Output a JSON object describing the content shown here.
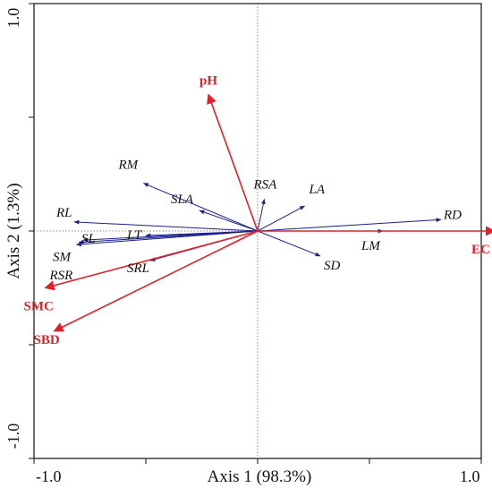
{
  "chart_data": {
    "type": "biplot",
    "xlabel": "Axis 1 (98.3%)",
    "ylabel": "Axis 2 (1.3%)",
    "xlim": [
      -1.0,
      1.0
    ],
    "ylim": [
      -1.0,
      1.0
    ],
    "x_tick_labels": [
      "-1.0",
      "1.0"
    ],
    "y_tick_labels": [
      "1.0",
      "-1.0"
    ],
    "colors": {
      "response": "#1c1f8c",
      "environment": "#e0202a"
    },
    "response_vectors": [
      {
        "label": "RL",
        "x": -0.82,
        "y": 0.04
      },
      {
        "label": "SL",
        "x": -0.78,
        "y": -0.04
      },
      {
        "label": "SM",
        "x": -0.8,
        "y": -0.05
      },
      {
        "label": "RSR",
        "x": -0.81,
        "y": -0.06
      },
      {
        "label": "LT",
        "x": -0.5,
        "y": -0.02
      },
      {
        "label": "RM",
        "x": -0.51,
        "y": 0.21
      },
      {
        "label": "SLA",
        "x": -0.26,
        "y": 0.09
      },
      {
        "label": "SRL",
        "x": -0.48,
        "y": -0.13
      },
      {
        "label": "RSA",
        "x": 0.03,
        "y": 0.14
      },
      {
        "label": "LA",
        "x": 0.21,
        "y": 0.11
      },
      {
        "label": "RD",
        "x": 0.82,
        "y": 0.05
      },
      {
        "label": "LM",
        "x": 0.56,
        "y": 0.0
      },
      {
        "label": "SD",
        "x": 0.28,
        "y": -0.11
      }
    ],
    "environment_vectors": [
      {
        "label": "pH",
        "x": -0.22,
        "y": 0.6
      },
      {
        "label": "EC",
        "x": 1.06,
        "y": 0.0
      },
      {
        "label": "SMC",
        "x": -0.95,
        "y": -0.25
      },
      {
        "label": "SBD",
        "x": -0.91,
        "y": -0.44
      }
    ]
  }
}
